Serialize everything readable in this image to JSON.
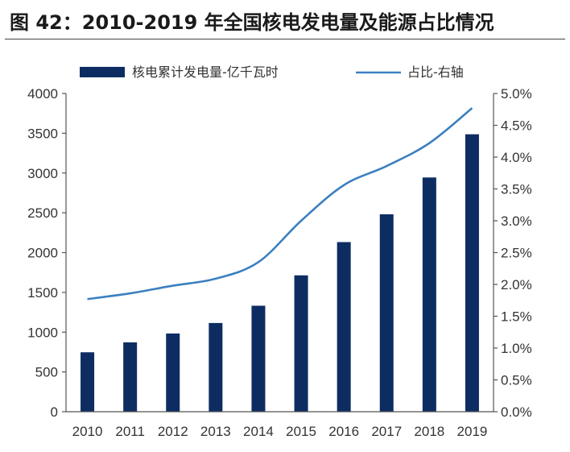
{
  "title": "图 42：2010-2019 年全国核电发电量及能源占比情况",
  "chart_data": {
    "type": "bar",
    "categories": [
      "2010",
      "2011",
      "2012",
      "2013",
      "2014",
      "2015",
      "2016",
      "2017",
      "2018",
      "2019"
    ],
    "series": [
      {
        "name": "核电累计发电量-亿千瓦时",
        "type": "bar",
        "axis": "left",
        "color": "#0d2d62",
        "values": [
          747,
          872,
          983,
          1115,
          1332,
          1714,
          2132,
          2481,
          2944,
          3487
        ]
      },
      {
        "name": "占比-右轴",
        "type": "line",
        "axis": "right",
        "color": "#3b80c0",
        "values": [
          1.77,
          1.86,
          1.98,
          2.09,
          2.35,
          3.0,
          3.56,
          3.86,
          4.22,
          4.77
        ]
      }
    ],
    "y_left": {
      "range": [
        0,
        4000
      ],
      "ticks": [
        "0",
        "500",
        "1000",
        "1500",
        "2000",
        "2500",
        "3000",
        "3500",
        "4000"
      ]
    },
    "y_right": {
      "range": [
        0,
        5
      ],
      "ticks": [
        "0.0%",
        "0.5%",
        "1.0%",
        "1.5%",
        "2.0%",
        "2.5%",
        "3.0%",
        "3.5%",
        "4.0%",
        "4.5%",
        "5.0%"
      ]
    },
    "grid": false,
    "legend_position": "top"
  }
}
